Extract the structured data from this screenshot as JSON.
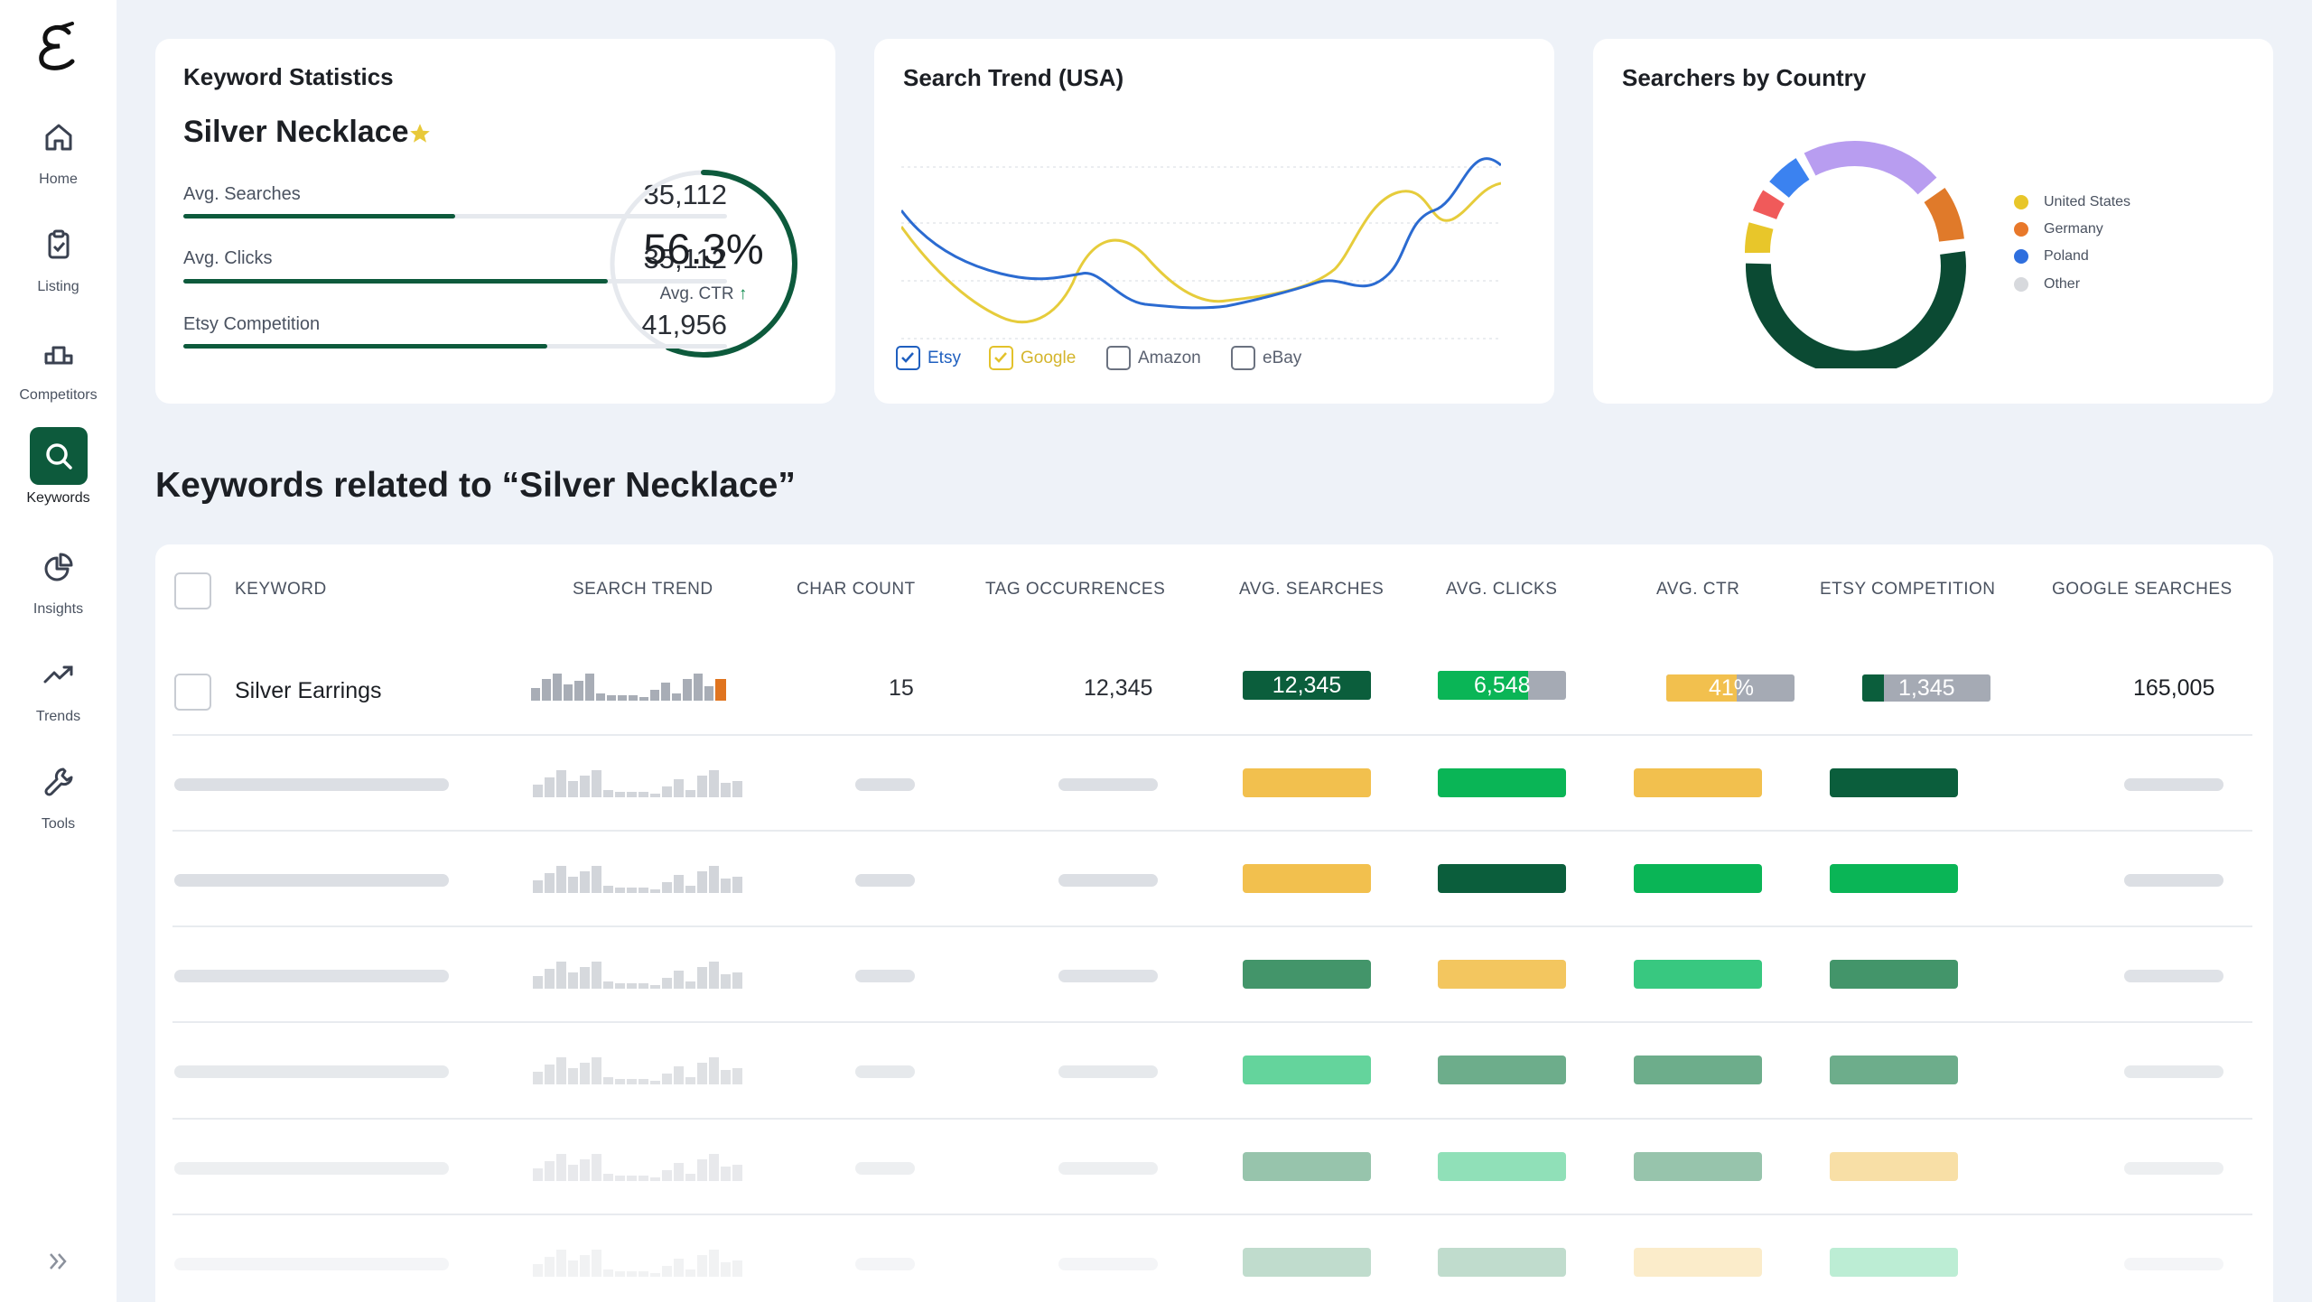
{
  "sidebar": {
    "items": [
      {
        "label": "Home",
        "icon": "home-icon"
      },
      {
        "label": "Listing",
        "icon": "clipboard-icon"
      },
      {
        "label": "Competitors",
        "icon": "podium-icon"
      },
      {
        "label": "Keywords",
        "icon": "search-icon"
      },
      {
        "label": "Insights",
        "icon": "pie-icon"
      },
      {
        "label": "Trends",
        "icon": "trend-icon"
      },
      {
        "label": "Tools",
        "icon": "wrench-icon"
      }
    ]
  },
  "stats_card": {
    "title": "Keyword Statistics",
    "keyword": "Silver Necklace",
    "rows": [
      {
        "label": "Avg. Searches",
        "value": "35,112",
        "fill": 0.5
      },
      {
        "label": "Avg. Clicks",
        "value": "35,112",
        "fill": 0.78
      },
      {
        "label": "Etsy Competition",
        "value": "41,956",
        "fill": 0.67
      }
    ],
    "ctr_value": "56.3%",
    "ctr_label": "Avg. CTR",
    "ctr_fraction": 0.563
  },
  "trend_card": {
    "title": "Search Trend (USA)",
    "sources": [
      {
        "label": "Etsy",
        "checked": true,
        "color": "#1f5fbf"
      },
      {
        "label": "Google",
        "checked": true,
        "color": "#e3c22b"
      },
      {
        "label": "Amazon",
        "checked": false,
        "color": "#5a6170"
      },
      {
        "label": "eBay",
        "checked": false,
        "color": "#5a6170"
      }
    ]
  },
  "country_card": {
    "title": "Searchers by Country",
    "legend": [
      {
        "label": "United States",
        "color": "#e8c62a"
      },
      {
        "label": "Germany",
        "color": "#e8782a"
      },
      {
        "label": "Poland",
        "color": "#2f6fde"
      },
      {
        "label": "Other",
        "color": "#d7d9dd"
      }
    ]
  },
  "related_heading": "Keywords related to “Silver Necklace”",
  "table": {
    "headers": [
      "KEYWORD",
      "SEARCH TREND",
      "CHAR COUNT",
      "TAG OCCURRENCES",
      "AVG. SEARCHES",
      "AVG. CLICKS",
      "AVG. CTR",
      "ETSY COMPETITION",
      "GOOGLE SEARCHES"
    ],
    "first_row": {
      "keyword": "Silver Earrings",
      "char_count": "15",
      "tag_occurrences": "12,345",
      "avg_searches": "12,345",
      "avg_clicks": "6,548",
      "avg_ctr": "41%",
      "etsy_competition": "1,345",
      "google_searches": "165,005"
    }
  }
}
